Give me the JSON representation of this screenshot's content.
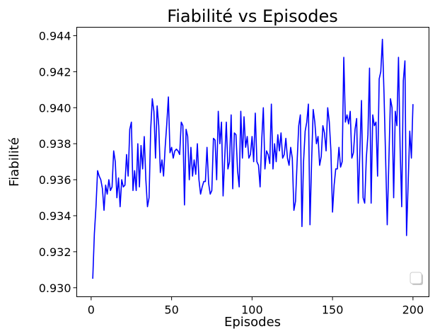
{
  "chart_data": {
    "type": "line",
    "title": "Fiabilité vs Episodes",
    "x_label": "Episodes",
    "y_label": "Fiabilité",
    "x": [
      1,
      2,
      3,
      4,
      5,
      6,
      7,
      8,
      9,
      10,
      11,
      12,
      13,
      14,
      15,
      16,
      17,
      18,
      19,
      20,
      21,
      22,
      23,
      24,
      25,
      26,
      27,
      28,
      29,
      30,
      31,
      32,
      33,
      34,
      35,
      36,
      37,
      38,
      39,
      40,
      41,
      42,
      43,
      44,
      45,
      46,
      47,
      48,
      49,
      50,
      51,
      52,
      53,
      54,
      55,
      56,
      57,
      58,
      59,
      60,
      61,
      62,
      63,
      64,
      65,
      66,
      67,
      68,
      69,
      70,
      71,
      72,
      73,
      74,
      75,
      76,
      77,
      78,
      79,
      80,
      81,
      82,
      83,
      84,
      85,
      86,
      87,
      88,
      89,
      90,
      91,
      92,
      93,
      94,
      95,
      96,
      97,
      98,
      99,
      100,
      101,
      102,
      103,
      104,
      105,
      106,
      107,
      108,
      109,
      110,
      111,
      112,
      113,
      114,
      115,
      116,
      117,
      118,
      119,
      120,
      121,
      122,
      123,
      124,
      125,
      126,
      127,
      128,
      129,
      130,
      131,
      132,
      133,
      134,
      135,
      136,
      137,
      138,
      139,
      140,
      141,
      142,
      143,
      144,
      145,
      146,
      147,
      148,
      149,
      150,
      151,
      152,
      153,
      154,
      155,
      156,
      157,
      158,
      159,
      160,
      161,
      162,
      163,
      164,
      165,
      166,
      167,
      168,
      169,
      170,
      171,
      172,
      173,
      174,
      175,
      176,
      177,
      178,
      179,
      180,
      181,
      182,
      183,
      184,
      185,
      186,
      187,
      188,
      189,
      190,
      191,
      192,
      193,
      194,
      195,
      196,
      197,
      198,
      199,
      200
    ],
    "series": [
      {
        "color": "#0000ff",
        "values": [
          0.9305,
          0.933,
          0.9345,
          0.9365,
          0.9362,
          0.936,
          0.9355,
          0.9343,
          0.9357,
          0.9352,
          0.936,
          0.9354,
          0.9356,
          0.9376,
          0.937,
          0.935,
          0.9361,
          0.9345,
          0.936,
          0.9356,
          0.9357,
          0.9374,
          0.9362,
          0.9388,
          0.9392,
          0.9354,
          0.9365,
          0.9354,
          0.938,
          0.9356,
          0.9379,
          0.9366,
          0.9384,
          0.936,
          0.9345,
          0.935,
          0.9388,
          0.9405,
          0.9398,
          0.9372,
          0.9401,
          0.939,
          0.9364,
          0.9371,
          0.9362,
          0.9378,
          0.9391,
          0.9406,
          0.9375,
          0.9378,
          0.9372,
          0.9376,
          0.9377,
          0.9376,
          0.9374,
          0.9392,
          0.939,
          0.9346,
          0.9388,
          0.9384,
          0.936,
          0.9378,
          0.9362,
          0.9371,
          0.9363,
          0.938,
          0.936,
          0.9352,
          0.9356,
          0.9359,
          0.9359,
          0.9378,
          0.9358,
          0.9352,
          0.9354,
          0.9383,
          0.9382,
          0.936,
          0.9398,
          0.938,
          0.9392,
          0.9351,
          0.9372,
          0.9392,
          0.9366,
          0.937,
          0.9396,
          0.9355,
          0.9386,
          0.9385,
          0.9365,
          0.9356,
          0.9398,
          0.9372,
          0.9395,
          0.9378,
          0.9384,
          0.9372,
          0.9374,
          0.9384,
          0.937,
          0.9397,
          0.937,
          0.9368,
          0.9356,
          0.9382,
          0.94,
          0.9366,
          0.9376,
          0.9374,
          0.9369,
          0.9402,
          0.9366,
          0.938,
          0.937,
          0.9385,
          0.9376,
          0.9386,
          0.9372,
          0.9374,
          0.9383,
          0.9372,
          0.9368,
          0.9378,
          0.9372,
          0.9343,
          0.9348,
          0.937,
          0.939,
          0.9396,
          0.9334,
          0.937,
          0.9387,
          0.9392,
          0.9402,
          0.9335,
          0.937,
          0.9399,
          0.9392,
          0.938,
          0.9384,
          0.9368,
          0.9373,
          0.939,
          0.9386,
          0.9376,
          0.94,
          0.9392,
          0.9376,
          0.9342,
          0.9357,
          0.9366,
          0.9366,
          0.9378,
          0.9367,
          0.937,
          0.9428,
          0.9392,
          0.9396,
          0.9391,
          0.9398,
          0.9372,
          0.9375,
          0.9388,
          0.9394,
          0.9347,
          0.9376,
          0.9404,
          0.935,
          0.9347,
          0.9372,
          0.9385,
          0.9422,
          0.9347,
          0.9396,
          0.939,
          0.9392,
          0.9362,
          0.9416,
          0.942,
          0.9438,
          0.9408,
          0.9372,
          0.9335,
          0.937,
          0.9405,
          0.94,
          0.935,
          0.9398,
          0.939,
          0.9428,
          0.9378,
          0.9345,
          0.9415,
          0.9426,
          0.9329,
          0.9358,
          0.9387,
          0.9372,
          0.9402
        ]
      }
    ],
    "xlim": [
      -8.95,
      209.95
    ],
    "xticks": [
      0,
      50,
      100,
      150,
      200
    ],
    "ylim": [
      0.9295,
      0.94447
    ],
    "yticks": [
      {
        "value": 0.93,
        "label": "0.930"
      },
      0.932,
      0.934,
      0.936,
      0.938,
      {
        "value": 0.94,
        "label": "0.940"
      },
      0.942,
      0.944
    ]
  }
}
